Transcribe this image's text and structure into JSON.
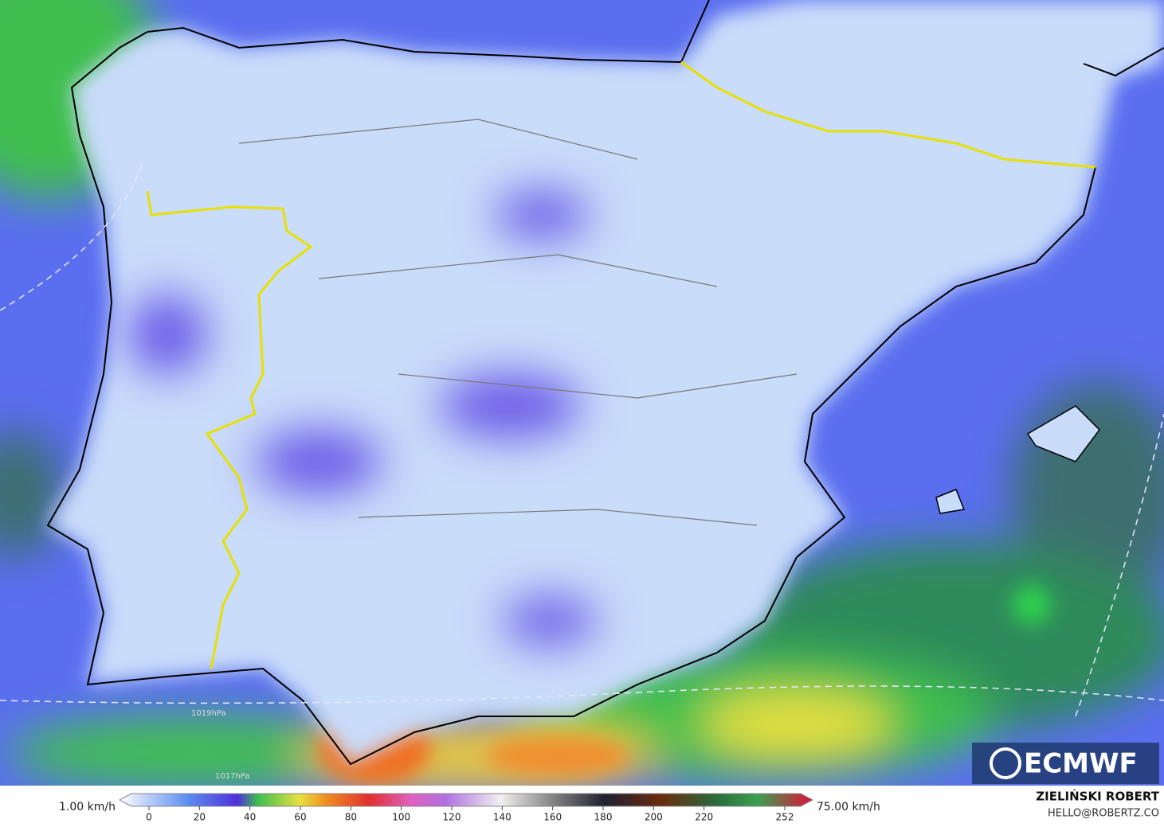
{
  "map": {
    "isobar_labels": [
      "1019hPa",
      "1017hPa"
    ],
    "logo": "ECMWF"
  },
  "colorbar": {
    "min_label": "1.00 km/h",
    "max_label": "75.00 km/h",
    "ticks": [
      0,
      20,
      40,
      60,
      80,
      100,
      120,
      140,
      160,
      180,
      200,
      220,
      252
    ]
  },
  "credits": {
    "author": "ZIELIŃSKI ROBERT",
    "contact": "HELLO@ROBERTZ.CO"
  }
}
